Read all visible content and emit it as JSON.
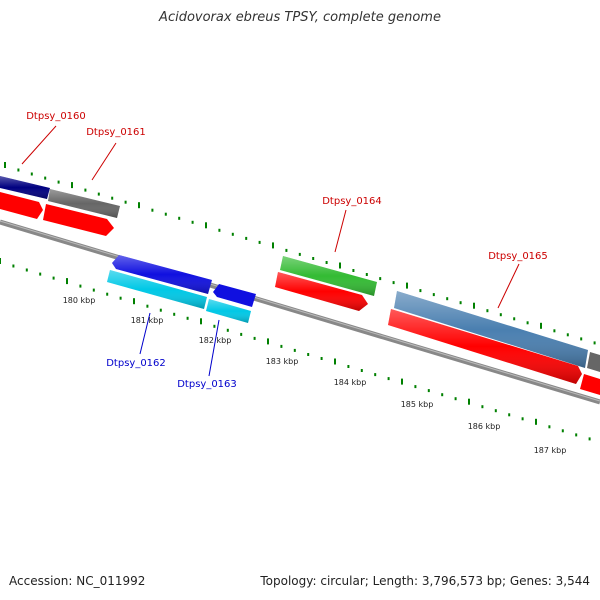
{
  "title": "Acidovorax ebreus TPSY, complete genome",
  "footer": {
    "accession": "Accession: NC_011992",
    "summary": "Topology: circular; Length: 3,796,573 bp; Genes: 3,544"
  },
  "scale_labels": [
    "180 kbp",
    "181 kbp",
    "182 kbp",
    "183 kbp",
    "184 kbp",
    "185 kbp",
    "186 kbp",
    "187 kbp"
  ],
  "genes": [
    {
      "id": "Dtpsy_0160",
      "color": "#000080"
    },
    {
      "id": "Dtpsy_0161",
      "color": "#666666"
    },
    {
      "id": "Dtpsy_0162",
      "color": "#00c8e6"
    },
    {
      "id": "Dtpsy_0163",
      "color": "#00c8e6"
    },
    {
      "id": "Dtpsy_0164",
      "color": "#33bb33"
    },
    {
      "id": "Dtpsy_0165",
      "color": "#4a7fb0"
    }
  ],
  "colors": {
    "backbone": "#777777",
    "forward_cds": "#ff0000",
    "reverse_cds": "#1010e0",
    "tick": "#008000",
    "label_forward": "#cc0000",
    "label_reverse": "#0000cc"
  }
}
